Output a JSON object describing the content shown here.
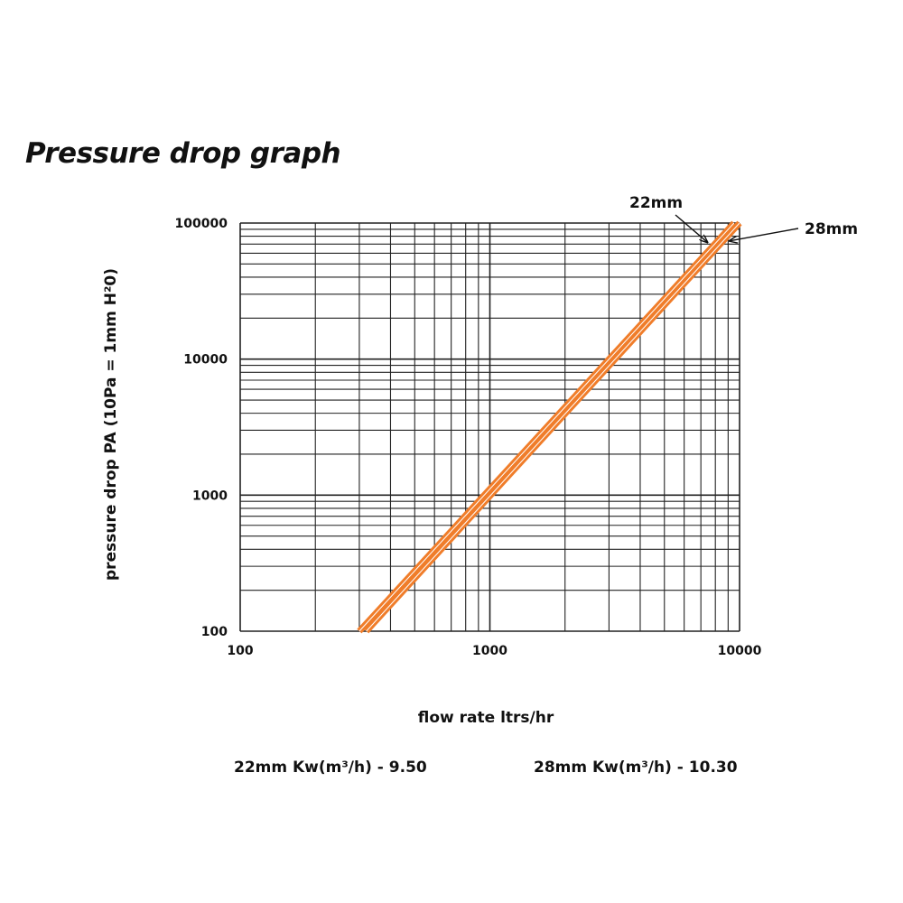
{
  "page": {
    "title": "Pressure drop graph",
    "kv_22": "22mm Kw(m³/h) - 9.50",
    "kv_28": "28mm Kw(m³/h) - 10.30"
  },
  "chart_data": {
    "type": "line",
    "title": "Pressure drop graph",
    "xlabel": "flow rate ltrs/hr",
    "ylabel": "pressure drop PA (10Pa = 1mm H²0)",
    "x_scale": "log",
    "y_scale": "log",
    "xlim": [
      100,
      10000
    ],
    "ylim": [
      100,
      100000
    ],
    "x_ticks": [
      "100",
      "1000",
      "10000"
    ],
    "y_ticks": [
      "100",
      "1000",
      "10000",
      "100000"
    ],
    "grid": true,
    "line_color": "#f07d2a",
    "series": [
      {
        "name": "22mm",
        "x": [
          300,
          9500
        ],
        "y": [
          100,
          100000
        ]
      },
      {
        "name": "28mm",
        "x": [
          320,
          10000
        ],
        "y": [
          100,
          100000
        ]
      }
    ]
  }
}
